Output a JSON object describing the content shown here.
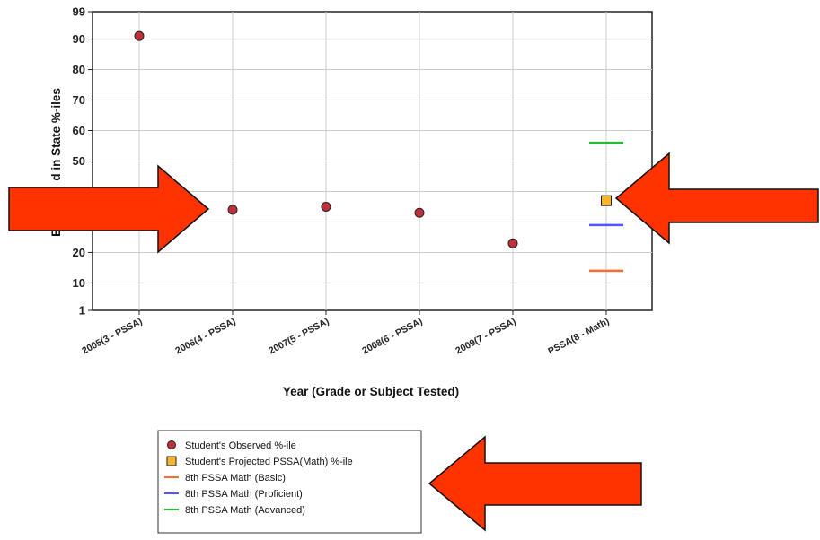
{
  "chart_data": {
    "type": "scatter",
    "xlabel": "Year (Grade or Subject Tested)",
    "ylabel": "Expected Gained in State %-iles",
    "ylabel_visible": "Exp          d in State %-iles",
    "ylim": [
      1,
      99
    ],
    "yticks": [
      1,
      10,
      20,
      30,
      40,
      50,
      60,
      70,
      80,
      90,
      99
    ],
    "categories": [
      "2005(3 - PSSA)",
      "2006(4 - PSSA)",
      "2007(5 - PSSA)",
      "2008(6 - PSSA)",
      "2009(7 - PSSA)",
      "PSSA(8 - Math)"
    ],
    "grid": true,
    "series": [
      {
        "name": "Student's Observed %-ile",
        "marker": "circle",
        "color": "#c0303a",
        "points": [
          {
            "x": "2005(3 - PSSA)",
            "y": 91
          },
          {
            "x": "2006(4 - PSSA)",
            "y": 34
          },
          {
            "x": "2007(5 - PSSA)",
            "y": 35
          },
          {
            "x": "2008(6 - PSSA)",
            "y": 33
          },
          {
            "x": "2009(7 - PSSA)",
            "y": 23
          }
        ]
      },
      {
        "name": "Student's Projected PSSA(Math) %-ile",
        "marker": "square",
        "color": "#f5b52c",
        "points": [
          {
            "x": "PSSA(8 - Math)",
            "y": 37
          }
        ]
      },
      {
        "name": "8th PSSA Math (Basic)",
        "marker": "hline",
        "color": "#ff6a2e",
        "points": [
          {
            "x": "PSSA(8 - Math)",
            "y": 14
          }
        ]
      },
      {
        "name": "8th PSSA Math (Proficient)",
        "marker": "hline",
        "color": "#5555ff",
        "points": [
          {
            "x": "PSSA(8 - Math)",
            "y": 29
          }
        ]
      },
      {
        "name": "8th PSSA Math (Advanced)",
        "marker": "hline",
        "color": "#22bb33",
        "points": [
          {
            "x": "PSSA(8 - Math)",
            "y": 56
          }
        ]
      }
    ],
    "legend_position": "bottom"
  },
  "annotations": {
    "arrow_color": "#ff3300"
  }
}
